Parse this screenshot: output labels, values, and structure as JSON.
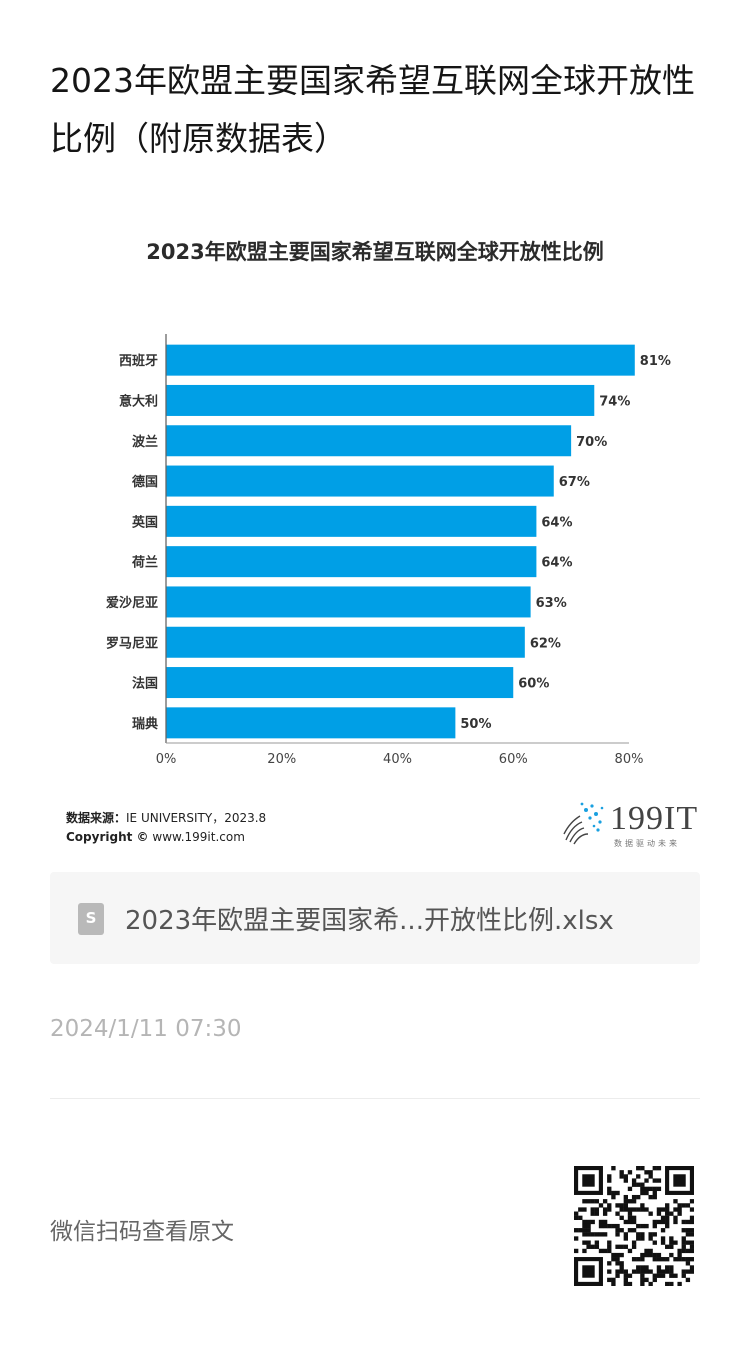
{
  "page": {
    "title": "2023年欧盟主要国家希望互联网全球开放性比例（附原数据表）"
  },
  "chart_data": {
    "type": "bar",
    "orientation": "horizontal",
    "title": "2023年欧盟主要国家希望互联网全球开放性比例",
    "categories": [
      "西班牙",
      "意大利",
      "波兰",
      "德国",
      "英国",
      "荷兰",
      "爱沙尼亚",
      "罗马尼亚",
      "法国",
      "瑞典"
    ],
    "values": [
      81,
      74,
      70,
      67,
      64,
      64,
      63,
      62,
      60,
      50
    ],
    "value_labels": [
      "81%",
      "74%",
      "70%",
      "67%",
      "64%",
      "64%",
      "63%",
      "62%",
      "60%",
      "50%"
    ],
    "xlim": [
      0,
      80
    ],
    "x_ticks": [
      "0%",
      "20%",
      "40%",
      "60%",
      "80%"
    ],
    "bar_color": "#009fe6",
    "grid": false
  },
  "source": {
    "label": "数据来源：",
    "text": "IE UNIVERSITY，2023.8",
    "copyright_label": "Copyright ©",
    "copyright_text": "www.199it.com"
  },
  "logo": {
    "text": "199IT",
    "sub": "数据驱动未来"
  },
  "attachment": {
    "icon": "spreadsheet-file-icon",
    "icon_letter": "S",
    "filename": "2023年欧盟主要国家希...开放性比例.xlsx"
  },
  "meta": {
    "date": "2024/1/11 07:30",
    "scan_text": "微信扫码查看原文",
    "qr_icon": "qr-code-icon"
  }
}
